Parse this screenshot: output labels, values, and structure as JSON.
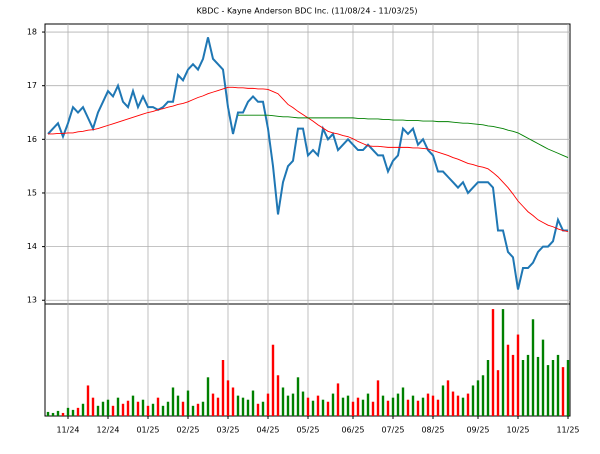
{
  "chart_data": [
    {
      "type": "line",
      "title": "KBDC - Kayne Anderson BDC Inc. (11/08/24 - 11/03/25)",
      "categories": [
        null,
        null,
        null,
        null,
        "11/24",
        null,
        null,
        null,
        null,
        null,
        null,
        null,
        "12/24",
        null,
        null,
        null,
        null,
        null,
        null,
        null,
        "01/25",
        null,
        null,
        null,
        null,
        null,
        null,
        null,
        "02/25",
        null,
        null,
        null,
        null,
        null,
        null,
        null,
        "03/25",
        null,
        null,
        null,
        null,
        null,
        null,
        null,
        "04/25",
        null,
        null,
        null,
        null,
        null,
        null,
        null,
        "05/25",
        null,
        null,
        null,
        null,
        null,
        null,
        null,
        null,
        "06/25",
        null,
        null,
        null,
        null,
        null,
        null,
        null,
        "07/25",
        null,
        null,
        null,
        null,
        null,
        null,
        null,
        "08/25",
        null,
        null,
        null,
        null,
        null,
        null,
        null,
        null,
        "09/25",
        null,
        null,
        null,
        null,
        null,
        null,
        null,
        "10/25",
        null,
        null,
        null,
        null,
        null,
        null,
        null,
        null,
        null,
        "11/25"
      ],
      "series": [
        {
          "color": "#1f77b4",
          "values": [
            16.1,
            16.2,
            16.3,
            16.05,
            16.3,
            16.6,
            16.5,
            16.6,
            16.4,
            16.2,
            16.5,
            16.7,
            16.9,
            16.8,
            17.0,
            16.7,
            16.6,
            16.9,
            16.6,
            16.8,
            16.6,
            16.6,
            16.55,
            16.6,
            16.7,
            16.7,
            17.2,
            17.1,
            17.3,
            17.4,
            17.3,
            17.5,
            17.9,
            17.5,
            17.4,
            17.3,
            16.6,
            16.1,
            16.5,
            16.5,
            16.7,
            16.8,
            16.7,
            16.7,
            16.2,
            15.5,
            14.6,
            15.2,
            15.5,
            15.6,
            16.2,
            16.2,
            15.7,
            15.8,
            15.7,
            16.2,
            16.0,
            16.1,
            15.8,
            15.9,
            16.0,
            15.9,
            15.8,
            15.8,
            15.9,
            15.8,
            15.7,
            15.7,
            15.4,
            15.6,
            15.7,
            16.2,
            16.1,
            16.2,
            15.9,
            16.0,
            15.8,
            15.7,
            15.4,
            15.4,
            15.3,
            15.2,
            15.1,
            15.2,
            15.0,
            15.1,
            15.2,
            15.2,
            15.2,
            15.1,
            14.3,
            14.3,
            13.9,
            13.8,
            13.2,
            13.6,
            13.6,
            13.7,
            13.9,
            14.0,
            14.0,
            14.1,
            14.5,
            14.3,
            14.3
          ]
        },
        {
          "color": "#ff0000",
          "values": [
            16.1,
            16.1,
            16.11,
            16.11,
            16.12,
            16.12,
            16.14,
            16.15,
            16.17,
            16.18,
            16.2,
            16.23,
            16.26,
            16.29,
            16.32,
            16.35,
            16.38,
            16.41,
            16.44,
            16.47,
            16.5,
            16.52,
            16.55,
            16.57,
            16.6,
            16.62,
            16.65,
            16.67,
            16.7,
            16.74,
            16.78,
            16.81,
            16.85,
            16.88,
            16.91,
            16.94,
            16.97,
            16.97,
            16.96,
            16.96,
            16.95,
            16.95,
            16.94,
            16.94,
            16.93,
            16.89,
            16.85,
            16.75,
            16.65,
            16.59,
            16.52,
            16.46,
            16.4,
            16.34,
            16.27,
            16.21,
            16.15,
            16.12,
            16.1,
            16.07,
            16.05,
            16.01,
            15.96,
            15.92,
            15.88,
            15.87,
            15.87,
            15.86,
            15.85,
            15.85,
            15.85,
            15.85,
            15.85,
            15.84,
            15.84,
            15.83,
            15.82,
            15.79,
            15.76,
            15.73,
            15.7,
            15.66,
            15.63,
            15.59,
            15.55,
            15.53,
            15.5,
            15.48,
            15.45,
            15.38,
            15.3,
            15.2,
            15.1,
            14.98,
            14.85,
            14.75,
            14.65,
            14.58,
            14.5,
            14.45,
            14.4,
            14.37,
            14.33,
            14.3,
            14.28
          ]
        },
        {
          "color": "#008000",
          "values": [
            null,
            null,
            null,
            null,
            null,
            null,
            null,
            null,
            null,
            null,
            null,
            null,
            null,
            null,
            null,
            null,
            null,
            null,
            null,
            null,
            null,
            null,
            null,
            null,
            null,
            null,
            null,
            null,
            null,
            null,
            null,
            null,
            null,
            null,
            null,
            null,
            null,
            null,
            16.45,
            16.45,
            16.45,
            16.45,
            16.45,
            16.45,
            16.45,
            16.44,
            16.43,
            16.42,
            16.42,
            16.41,
            16.4,
            16.4,
            16.4,
            16.4,
            16.4,
            16.4,
            16.4,
            16.4,
            16.4,
            16.4,
            16.4,
            16.4,
            16.39,
            16.39,
            16.38,
            16.38,
            16.38,
            16.37,
            16.37,
            16.36,
            16.36,
            16.36,
            16.35,
            16.35,
            16.35,
            16.34,
            16.34,
            16.34,
            16.33,
            16.33,
            16.33,
            16.32,
            16.31,
            16.3,
            16.3,
            16.29,
            16.28,
            16.27,
            16.25,
            16.24,
            16.22,
            16.2,
            16.17,
            16.15,
            16.12,
            16.07,
            16.02,
            15.97,
            15.92,
            15.87,
            15.82,
            15.78,
            15.74,
            15.7,
            15.66
          ]
        }
      ],
      "ylim": [
        12.93,
        18.15
      ],
      "yticks": [
        13,
        14,
        15,
        16,
        17,
        18
      ],
      "grid": true
    },
    {
      "type": "bar",
      "up_color": "#008000",
      "down_color": "#ff0000",
      "values": [
        4,
        3,
        5,
        3,
        8,
        6,
        8,
        12,
        30,
        18,
        10,
        14,
        16,
        10,
        18,
        12,
        15,
        20,
        14,
        16,
        10,
        12,
        18,
        10,
        14,
        28,
        20,
        14,
        25,
        10,
        12,
        14,
        38,
        22,
        18,
        55,
        35,
        28,
        20,
        18,
        16,
        25,
        12,
        14,
        22,
        70,
        40,
        28,
        20,
        22,
        38,
        24,
        18,
        15,
        20,
        16,
        14,
        22,
        32,
        18,
        20,
        14,
        18,
        16,
        22,
        14,
        35,
        20,
        15,
        18,
        22,
        28,
        16,
        20,
        15,
        18,
        22,
        20,
        16,
        30,
        35,
        24,
        20,
        18,
        22,
        30,
        35,
        40,
        55,
        105,
        45,
        105,
        70,
        60,
        80,
        55,
        60,
        95,
        58,
        75,
        50,
        55,
        60,
        48,
        55
      ],
      "ylim": [
        0,
        110
      ]
    }
  ]
}
